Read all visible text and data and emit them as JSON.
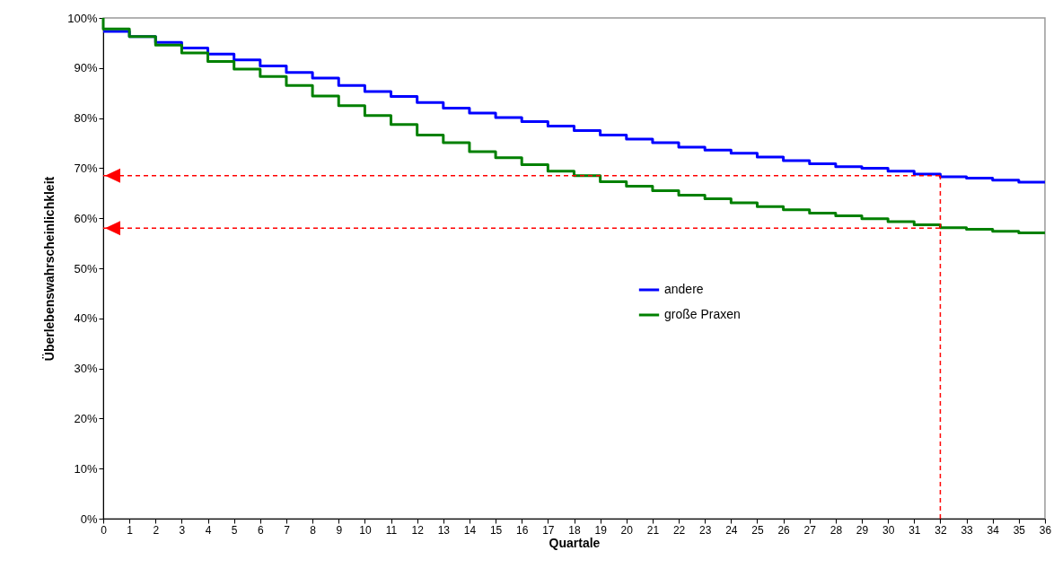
{
  "chart_data": {
    "type": "step",
    "xlabel": "Quartale",
    "ylabel": "Überlebenswahrscheinlichkleit",
    "xlim": [
      0,
      36
    ],
    "xticks": [
      0,
      1,
      2,
      3,
      4,
      5,
      6,
      7,
      8,
      9,
      10,
      11,
      12,
      13,
      14,
      15,
      16,
      17,
      18,
      19,
      20,
      21,
      22,
      23,
      24,
      25,
      26,
      27,
      28,
      29,
      30,
      31,
      32,
      33,
      34,
      35,
      36
    ],
    "ylim": [
      0,
      100
    ],
    "yticks": [
      {
        "value": 0,
        "label": "0%"
      },
      {
        "value": 10,
        "label": "10%"
      },
      {
        "value": 20,
        "label": "20%"
      },
      {
        "value": 30,
        "label": "30%"
      },
      {
        "value": 40,
        "label": "40%"
      },
      {
        "value": 50,
        "label": "50%"
      },
      {
        "value": 60,
        "label": "60%"
      },
      {
        "value": 70,
        "label": "70%"
      },
      {
        "value": 80,
        "label": "80%"
      },
      {
        "value": 90,
        "label": "90%"
      },
      {
        "value": 100,
        "label": "100%"
      }
    ],
    "grid": false,
    "legend": "right",
    "marker": "none",
    "line_style": "solid",
    "series": [
      {
        "name": "andere",
        "color": "#0000ff",
        "x": [
          0,
          1,
          2,
          3,
          4,
          5,
          6,
          7,
          8,
          9,
          10,
          11,
          12,
          13,
          14,
          15,
          16,
          17,
          18,
          19,
          20,
          21,
          22,
          23,
          24,
          25,
          26,
          27,
          28,
          29,
          30,
          31,
          32,
          33,
          34,
          35,
          36
        ],
        "values": [
          97.3,
          96.3,
          95.1,
          94.0,
          92.8,
          91.6,
          90.4,
          89.1,
          88.0,
          86.5,
          85.3,
          84.3,
          83.1,
          82.0,
          81.0,
          80.1,
          79.3,
          78.4,
          77.5,
          76.6,
          75.8,
          75.1,
          74.2,
          73.6,
          73.0,
          72.2,
          71.5,
          70.9,
          70.3,
          70.0,
          69.4,
          68.8,
          68.3,
          68.0,
          67.6,
          67.2,
          67.2
        ]
      },
      {
        "name": "große Praxen",
        "color": "#008000",
        "x": [
          0,
          0,
          1,
          2,
          3,
          4,
          5,
          6,
          7,
          8,
          9,
          10,
          11,
          12,
          13,
          14,
          15,
          16,
          17,
          18,
          19,
          20,
          21,
          22,
          23,
          24,
          25,
          26,
          27,
          28,
          29,
          30,
          31,
          32,
          33,
          34,
          35,
          36
        ],
        "values": [
          100,
          97.8,
          96.3,
          94.6,
          93.0,
          91.3,
          89.8,
          88.3,
          86.5,
          84.4,
          82.5,
          80.5,
          78.7,
          76.6,
          75.1,
          73.3,
          72.1,
          70.7,
          69.4,
          68.5,
          67.3,
          66.4,
          65.5,
          64.6,
          63.9,
          63.1,
          62.3,
          61.7,
          61.0,
          60.5,
          59.9,
          59.3,
          58.7,
          58.1,
          57.8,
          57.4,
          57.1,
          57.1
        ]
      }
    ],
    "ref_lines": [
      {
        "axis": "y",
        "value": 68.5,
        "color": "#ff0000",
        "line_style": "dashed"
      },
      {
        "axis": "y",
        "value": 58,
        "color": "#ff0000",
        "line_style": "dashed"
      },
      {
        "axis": "x",
        "value": 32,
        "color": "#ff0000",
        "line_style": "dashed"
      }
    ]
  }
}
